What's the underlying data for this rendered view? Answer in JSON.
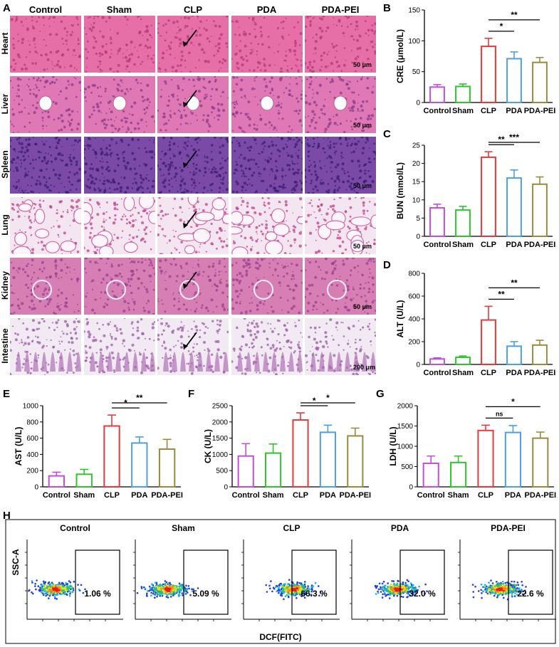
{
  "panel_letters": {
    "A": "A",
    "B": "B",
    "C": "C",
    "D": "D",
    "E": "E",
    "F": "F",
    "G": "G",
    "H": "H"
  },
  "histology": {
    "columns": [
      "Control",
      "Sham",
      "CLP",
      "PDA",
      "PDA-PEI"
    ],
    "rows": [
      {
        "label": "Heart",
        "scale": "50 μm",
        "base": "#e66fa8",
        "dots": "#b8377a"
      },
      {
        "label": "Liver",
        "scale": "50 μm",
        "base": "#df78b4",
        "dots": "#8a3b8e"
      },
      {
        "label": "Spleen",
        "scale": "50 μm",
        "base": "#7a4aa6",
        "dots": "#3b1f70"
      },
      {
        "label": "Lung",
        "scale": "50 μm",
        "base": "#f4e6f1",
        "dots": "#c0408a"
      },
      {
        "label": "Kidney",
        "scale": "50 μm",
        "base": "#d77fb5",
        "dots": "#9a3f8e"
      },
      {
        "label": "Intestine",
        "scale": "200 μm",
        "base": "#f2eaf2",
        "dots": "#9b5aa8"
      }
    ]
  },
  "chart_data": [
    {
      "panel": "B",
      "type": "bar",
      "categories": [
        "Control",
        "Sham",
        "CLP",
        "PDA",
        "PDA-PEI"
      ],
      "values": [
        25,
        26,
        91,
        71,
        65
      ],
      "errors": [
        4,
        4,
        13,
        11,
        8
      ],
      "ylabel": "CRE (μmol/L)",
      "ylim": [
        0,
        150
      ],
      "yticks": [
        0,
        50,
        100,
        150
      ],
      "sig": [
        {
          "from": 2,
          "to": 3,
          "label": "*"
        },
        {
          "from": 2,
          "to": 4,
          "label": "**"
        }
      ]
    },
    {
      "panel": "C",
      "type": "bar",
      "categories": [
        "Control",
        "Sham",
        "CLP",
        "PDA",
        "PDA-PEI"
      ],
      "values": [
        7.8,
        7.2,
        21.7,
        16.0,
        14.3
      ],
      "errors": [
        1.0,
        1.0,
        1.5,
        2.2,
        2.0
      ],
      "ylabel": "BUN (mmol/L)",
      "ylim": [
        0,
        25
      ],
      "yticks": [
        0,
        5,
        10,
        15,
        20,
        25
      ],
      "sig": [
        {
          "from": 2,
          "to": 3,
          "label": "**"
        },
        {
          "from": 2,
          "to": 4,
          "label": "***"
        }
      ]
    },
    {
      "panel": "D",
      "type": "bar",
      "categories": [
        "Control",
        "Sham",
        "CLP",
        "PDA",
        "PDA-PEI"
      ],
      "values": [
        48,
        62,
        390,
        160,
        170
      ],
      "errors": [
        10,
        12,
        120,
        40,
        42
      ],
      "ylabel": "ALT (U/L)",
      "ylim": [
        0,
        800
      ],
      "yticks": [
        0,
        200,
        400,
        600,
        800
      ],
      "sig": [
        {
          "from": 2,
          "to": 3,
          "label": "**"
        },
        {
          "from": 2,
          "to": 4,
          "label": "**"
        }
      ]
    },
    {
      "panel": "E",
      "type": "bar",
      "categories": [
        "Control",
        "Sham",
        "CLP",
        "PDA",
        "PDA-PEI"
      ],
      "values": [
        135,
        155,
        750,
        540,
        465
      ],
      "errors": [
        45,
        60,
        135,
        75,
        120
      ],
      "ylabel": "AST (U/L)",
      "ylim": [
        0,
        1000
      ],
      "yticks": [
        0,
        200,
        400,
        600,
        800,
        1000
      ],
      "sig": [
        {
          "from": 2,
          "to": 3,
          "label": "*"
        },
        {
          "from": 2,
          "to": 4,
          "label": "**"
        }
      ]
    },
    {
      "panel": "F",
      "type": "bar",
      "categories": [
        "Control",
        "Sham",
        "CLP",
        "PDA",
        "PDA-PEI"
      ],
      "values": [
        950,
        1040,
        2060,
        1680,
        1570
      ],
      "errors": [
        380,
        280,
        220,
        220,
        240
      ],
      "ylabel": "CK (U/L)",
      "ylim": [
        0,
        2500
      ],
      "yticks": [
        0,
        500,
        1000,
        1500,
        2000,
        2500
      ],
      "sig": [
        {
          "from": 2,
          "to": 3,
          "label": "*"
        },
        {
          "from": 2,
          "to": 4,
          "label": "*"
        }
      ]
    },
    {
      "panel": "G",
      "type": "bar",
      "categories": [
        "Control",
        "Sham",
        "CLP",
        "PDA",
        "PDA-PEI"
      ],
      "values": [
        580,
        600,
        1390,
        1340,
        1200
      ],
      "errors": [
        180,
        160,
        130,
        170,
        150
      ],
      "ylabel": "LDH (U/L)",
      "ylim": [
        0,
        2000
      ],
      "yticks": [
        0,
        500,
        1000,
        1500,
        2000
      ],
      "sig": [
        {
          "from": 2,
          "to": 3,
          "label": "ns"
        },
        {
          "from": 2,
          "to": 4,
          "label": "*"
        }
      ]
    }
  ],
  "bar_colors": [
    "#c04fdc",
    "#2ec42e",
    "#e8383b",
    "#4b9ee8",
    "#9c8a3a"
  ],
  "flow": {
    "xlabel": "DCF(FITC)",
    "ylabel": "SSC-A",
    "plots": [
      {
        "title": "Control",
        "gate_pct": "1.06 %"
      },
      {
        "title": "Sham",
        "gate_pct": "5.09 %"
      },
      {
        "title": "CLP",
        "gate_pct": "66.3 %"
      },
      {
        "title": "PDA",
        "gate_pct": "32.0 %"
      },
      {
        "title": "PDA-PEI",
        "gate_pct": "22.6 %"
      }
    ]
  }
}
